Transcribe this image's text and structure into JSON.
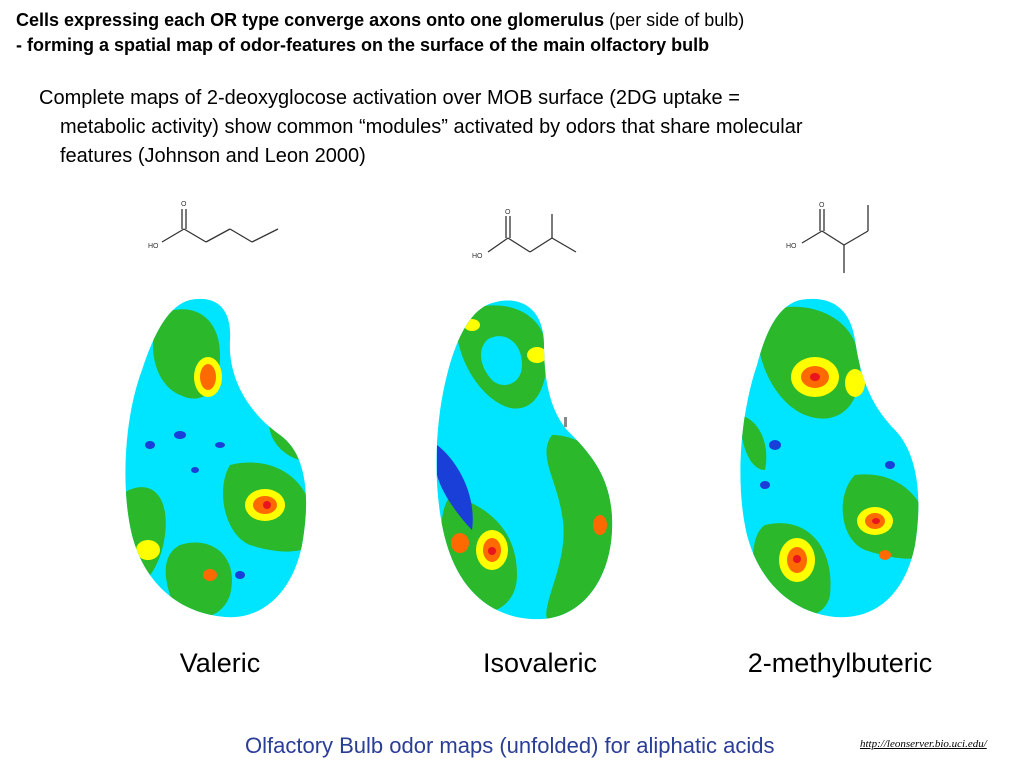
{
  "heading": {
    "line1_bold": "Cells expressing each OR type converge axons onto one glomerulus",
    "line1_normal": " (per side of bulb)",
    "line2_bold": "- forming a spatial map of odor-features on the surface of the main olfactory bulb"
  },
  "bullet": {
    "line1": "Complete maps of 2-deoxyglocose activation over MOB surface (2DG uptake =",
    "line2": "metabolic activity) show common “modules” activated by odors that share molecular",
    "line3": "features (Johnson and Leon 2000)"
  },
  "panels": [
    {
      "label": "Valeric",
      "molecule": {
        "hetero_label": "HO",
        "oxygen_label": "O"
      }
    },
    {
      "label": "Isovaleric",
      "molecule": {
        "hetero_label": "HO",
        "oxygen_label": "O"
      }
    },
    {
      "label": "2-methylbuteric",
      "molecule": {
        "hetero_label": "HO",
        "oxygen_label": "O"
      }
    }
  ],
  "colors": {
    "low": "#1a3fd9",
    "mid_low": "#00e5ff",
    "mid": "#2bb82b",
    "mid_high": "#ffff00",
    "high": "#ff6a00",
    "peak": "#e8141e"
  },
  "caption": "Olfactory Bulb odor maps (unfolded) for aliphatic acids",
  "link_text": "http://leonserver.bio.uci.edu/"
}
